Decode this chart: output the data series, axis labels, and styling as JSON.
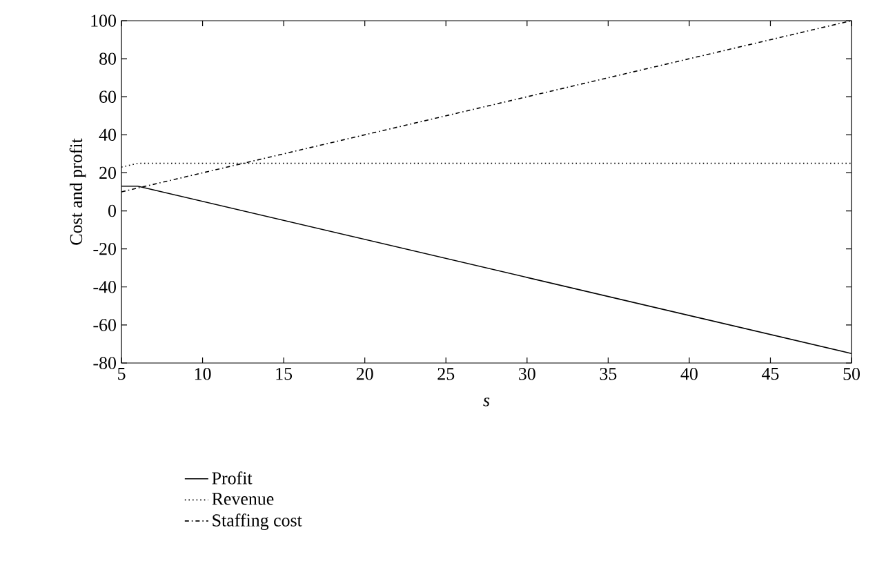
{
  "chart_data": {
    "type": "line",
    "xlabel": "s",
    "ylabel": "Cost and profit",
    "xlim": [
      5,
      50
    ],
    "xticks": [
      5,
      10,
      15,
      20,
      25,
      30,
      35,
      40,
      45,
      50
    ],
    "ylim": [
      -80,
      100
    ],
    "yticks": [
      -80,
      -60,
      -40,
      -20,
      0,
      20,
      40,
      60,
      80,
      100
    ],
    "grid": false,
    "legend": "bottom",
    "marker": "none",
    "x": [
      5,
      6,
      50
    ],
    "series": [
      {
        "name": "Profit",
        "color": "#000000",
        "line_style": "solid",
        "values": [
          13,
          13,
          -75
        ]
      },
      {
        "name": "Revenue",
        "color": "#000000",
        "line_style": "dotted",
        "values": [
          23,
          25,
          25
        ]
      },
      {
        "name": "Staffing cost",
        "color": "#000000",
        "line_style": "dashdot",
        "values": [
          10,
          12,
          100
        ]
      }
    ]
  }
}
